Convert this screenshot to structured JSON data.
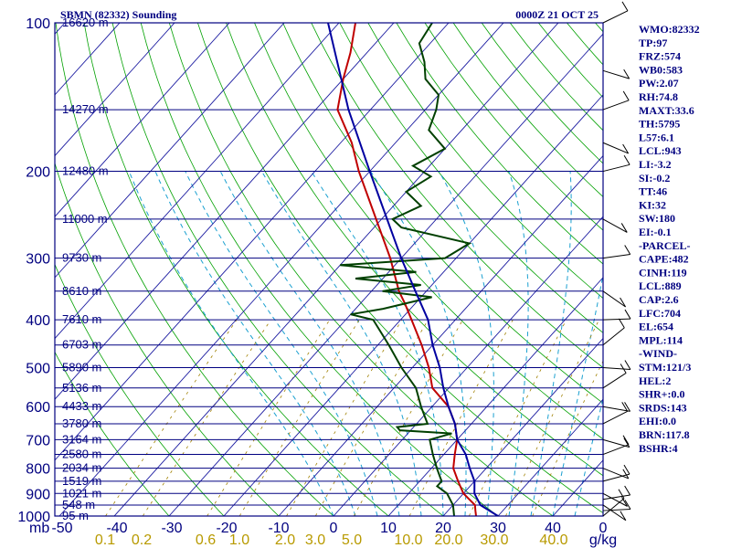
{
  "chart_data": {
    "type": "line",
    "title": "SBMN (82332) Sounding",
    "time": "0000Z 21 OCT 25",
    "pressure_axis_label": "mb",
    "pressure_ticks": [
      100,
      200,
      300,
      400,
      500,
      600,
      700,
      800,
      900,
      1000
    ],
    "temperature_ticks": [
      -50,
      -40,
      -30,
      -20,
      -10,
      0,
      10,
      20,
      30,
      40,
      0
    ],
    "mixing_ratio_ticks": [
      "0.1",
      "0.2",
      "0.6",
      "1.0",
      "2.0",
      "3.0",
      "5.0",
      "10.0",
      "20.0",
      "30.0",
      "40.0"
    ],
    "mixing_ratio_unit": "g/kg",
    "height_labels": [
      {
        "p": 100,
        "label": "16620 m"
      },
      {
        "p": 150,
        "label": "14270 m"
      },
      {
        "p": 200,
        "label": "12480 m"
      },
      {
        "p": 250,
        "label": "11000 m"
      },
      {
        "p": 300,
        "label": "9730 m"
      },
      {
        "p": 350,
        "label": "8610 m"
      },
      {
        "p": 400,
        "label": "7610 m"
      },
      {
        "p": 450,
        "label": "6703 m"
      },
      {
        "p": 500,
        "label": "5890 m"
      },
      {
        "p": 550,
        "label": "5136 m"
      },
      {
        "p": 600,
        "label": "4433 m"
      },
      {
        "p": 650,
        "label": "3780 m"
      },
      {
        "p": 700,
        "label": "3164 m"
      },
      {
        "p": 750,
        "label": "2580 m"
      },
      {
        "p": 800,
        "label": "2034 m"
      },
      {
        "p": 850,
        "label": "1519 m"
      },
      {
        "p": 900,
        "label": "1021 m"
      },
      {
        "p": 950,
        "label": "548 m"
      },
      {
        "p": 1000,
        "label": "95 m"
      }
    ],
    "series": [
      {
        "name": "Temperature",
        "color": "#c00000",
        "points": [
          [
            1000,
            26
          ],
          [
            975,
            25
          ],
          [
            950,
            24
          ],
          [
            925,
            22
          ],
          [
            900,
            20
          ],
          [
            850,
            17
          ],
          [
            800,
            14
          ],
          [
            750,
            12
          ],
          [
            700,
            10
          ],
          [
            650,
            7
          ],
          [
            600,
            3
          ],
          [
            550,
            -3
          ],
          [
            500,
            -7
          ],
          [
            450,
            -12
          ],
          [
            400,
            -18
          ],
          [
            370,
            -22
          ],
          [
            350,
            -25
          ],
          [
            300,
            -32
          ],
          [
            250,
            -41
          ],
          [
            200,
            -52
          ],
          [
            175,
            -58
          ],
          [
            150,
            -66
          ],
          [
            130,
            -70
          ],
          [
            115,
            -73
          ],
          [
            100,
            -77
          ]
        ]
      },
      {
        "name": "Dewpoint",
        "color": "#004000",
        "points": [
          [
            1000,
            22
          ],
          [
            950,
            20
          ],
          [
            900,
            17
          ],
          [
            870,
            14
          ],
          [
            850,
            14
          ],
          [
            800,
            11
          ],
          [
            750,
            8
          ],
          [
            700,
            5
          ],
          [
            680,
            8
          ],
          [
            670,
            -2
          ],
          [
            660,
            -3
          ],
          [
            650,
            2
          ],
          [
            600,
            -2
          ],
          [
            550,
            -6
          ],
          [
            500,
            -12
          ],
          [
            450,
            -18
          ],
          [
            400,
            -25
          ],
          [
            390,
            -30
          ],
          [
            380,
            -25
          ],
          [
            360,
            -18
          ],
          [
            350,
            -28
          ],
          [
            340,
            -22
          ],
          [
            330,
            -35
          ],
          [
            320,
            -25
          ],
          [
            310,
            -40
          ],
          [
            300,
            -22
          ],
          [
            280,
            -20
          ],
          [
            260,
            -35
          ],
          [
            250,
            -38
          ],
          [
            235,
            -35
          ],
          [
            220,
            -40
          ],
          [
            205,
            -38
          ],
          [
            195,
            -43
          ],
          [
            180,
            -40
          ],
          [
            165,
            -46
          ],
          [
            150,
            -48
          ],
          [
            140,
            -50
          ],
          [
            130,
            -55
          ],
          [
            120,
            -58
          ],
          [
            110,
            -62
          ],
          [
            100,
            -63
          ]
        ]
      },
      {
        "name": "Parcel",
        "color": "#0000a0",
        "points": [
          [
            1000,
            30
          ],
          [
            950,
            25
          ],
          [
            900,
            22
          ],
          [
            850,
            20
          ],
          [
            800,
            17
          ],
          [
            750,
            14
          ],
          [
            700,
            10
          ],
          [
            650,
            7
          ],
          [
            600,
            3
          ],
          [
            550,
            -1
          ],
          [
            500,
            -5
          ],
          [
            450,
            -10
          ],
          [
            400,
            -15
          ],
          [
            350,
            -22
          ],
          [
            300,
            -30
          ],
          [
            250,
            -39
          ],
          [
            200,
            -50
          ],
          [
            150,
            -64
          ],
          [
            100,
            -82
          ]
        ]
      }
    ],
    "wind_barbs_p": [
      1000,
      975,
      950,
      925,
      900,
      850,
      800,
      750,
      700,
      650,
      600,
      550,
      500,
      450,
      400,
      350,
      300,
      250,
      200,
      175,
      150,
      125,
      100
    ],
    "indices": [
      "WMO:82332",
      "TP:97",
      "FRZ:574",
      "WB0:583",
      "PW:2.07",
      "RH:74.8",
      "MAXT:33.6",
      "TH:5795",
      "L57:6.1",
      "LCL:943",
      "LI:-3.2",
      "SI:-0.2",
      "TT:46",
      "KI:32",
      "SW:180",
      "EI:-0.1",
      "-PARCEL-",
      "CAPE:482",
      "CINH:119",
      "LCL:889",
      "CAP:2.6",
      "LFC:704",
      "EL:654",
      "MPL:114",
      "-WIND-",
      "STM:121/3",
      "HEL:2",
      "SHR+:0.0",
      "SRDS:143",
      "EHI:0.0",
      "BRN:117.8",
      "BSHR:4"
    ],
    "colors": {
      "isobar": "#000080",
      "isotherm": "#1a1aa0",
      "dry_adiabat": "#00a000",
      "moist_adiabat": "#1aa0d0",
      "mixing_ratio": "#a08000",
      "text": "#000080",
      "height_label": "#000080"
    }
  }
}
